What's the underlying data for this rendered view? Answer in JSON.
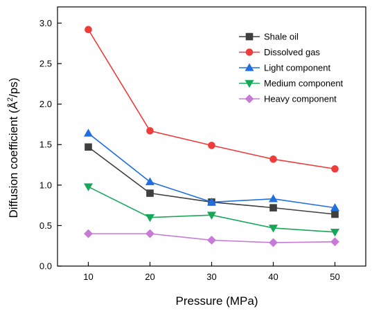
{
  "chart_data": {
    "type": "line",
    "title": "",
    "xlabel": "Pressure (MPa)",
    "ylabel_prefix": "Diffusion coefficient (Å",
    "ylabel_sup": "2",
    "ylabel_suffix": "/ps)",
    "x": [
      10,
      20,
      30,
      40,
      50
    ],
    "xlim": [
      5,
      55
    ],
    "ylim": [
      0,
      3.2
    ],
    "xticks": [
      10,
      20,
      30,
      40,
      50
    ],
    "xtick_labels": [
      "10",
      "20",
      "30",
      "40",
      "50"
    ],
    "yticks": [
      0,
      0.5,
      1.0,
      1.5,
      2.0,
      2.5,
      3.0
    ],
    "ytick_labels": [
      "0.0",
      "0.5",
      "1.0",
      "1.5",
      "2.0",
      "2.5",
      "3.0"
    ],
    "grid": false,
    "legend_position": "top-right",
    "series": [
      {
        "name": "Shale oil",
        "values": [
          1.47,
          0.9,
          0.79,
          0.72,
          0.64
        ],
        "color": "#3f3f3f",
        "marker": "square"
      },
      {
        "name": "Dissolved gas",
        "values": [
          2.92,
          1.67,
          1.49,
          1.32,
          1.2
        ],
        "color": "#ee3b3b",
        "marker": "circle"
      },
      {
        "name": "Light component",
        "values": [
          1.64,
          1.04,
          0.79,
          0.83,
          0.72
        ],
        "color": "#1f6fe0",
        "marker": "triangle-up"
      },
      {
        "name": "Medium component",
        "values": [
          0.98,
          0.6,
          0.63,
          0.47,
          0.42
        ],
        "color": "#18a659",
        "marker": "triangle-down"
      },
      {
        "name": "Heavy component",
        "values": [
          0.4,
          0.4,
          0.32,
          0.29,
          0.3
        ],
        "color": "#c77ad6",
        "marker": "diamond"
      }
    ]
  }
}
